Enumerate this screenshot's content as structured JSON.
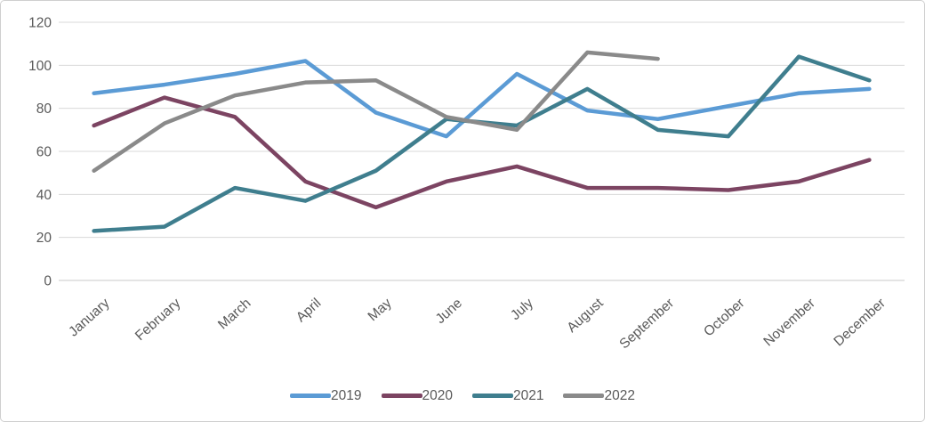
{
  "chart_data": {
    "type": "line",
    "title": "",
    "xlabel": "",
    "ylabel": "",
    "categories": [
      "January",
      "February",
      "March",
      "April",
      "May",
      "June",
      "July",
      "August",
      "September",
      "October",
      "November",
      "December"
    ],
    "series": [
      {
        "name": "2019",
        "color": "#5B9BD5",
        "values": [
          87,
          91,
          96,
          102,
          78,
          67,
          96,
          79,
          75,
          81,
          87,
          89
        ]
      },
      {
        "name": "2020",
        "color": "#7C4462",
        "values": [
          72,
          85,
          76,
          46,
          34,
          46,
          53,
          43,
          43,
          42,
          46,
          56
        ]
      },
      {
        "name": "2021",
        "color": "#3F7E8E",
        "values": [
          23,
          25,
          43,
          37,
          51,
          75,
          72,
          89,
          70,
          67,
          104,
          93
        ]
      },
      {
        "name": "2022",
        "color": "#8A8A8A",
        "values": [
          51,
          73,
          86,
          92,
          93,
          76,
          70,
          106,
          103,
          null,
          null,
          null
        ]
      }
    ],
    "yticks": [
      0,
      20,
      40,
      60,
      80,
      100,
      120
    ],
    "ylim": [
      0,
      120
    ],
    "grid": true,
    "legend_position": "bottom"
  },
  "style": {
    "gridline_color": "#D9D9D9",
    "axis_line_color": "#C9C9C9",
    "axis_text_color": "#595959",
    "background": "#FFFFFF"
  }
}
